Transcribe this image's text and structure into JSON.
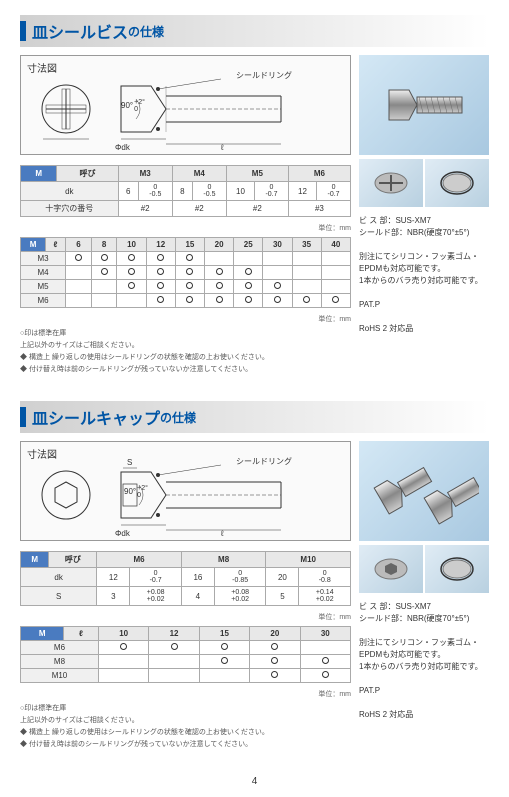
{
  "sec1": {
    "title": "皿シールビス",
    "titleSub": "の仕様",
    "diagram": {
      "label": "寸法図",
      "angle": "90°",
      "angleTol1": "+2°",
      "angleTol2": "0",
      "ring": "シールドリング",
      "dk": "Φdk",
      "len": "ℓ"
    },
    "t1": {
      "hdr": [
        "呼び",
        "M3",
        "M4",
        "M5",
        "M6"
      ],
      "rows": [
        {
          "lbl": "dk",
          "cells": [
            [
              "6",
              "0",
              "-0.5"
            ],
            [
              "8",
              "0",
              "-0.5"
            ],
            [
              "10",
              "0",
              "-0.7"
            ],
            [
              "12",
              "0",
              "-0.7"
            ]
          ]
        },
        {
          "lbl": "十字穴の番号",
          "plain": [
            "#2",
            "#2",
            "#2",
            "#3"
          ]
        }
      ],
      "unit": "単位：mm"
    },
    "t2": {
      "hdr": [
        "ℓ",
        "6",
        "8",
        "10",
        "12",
        "15",
        "20",
        "25",
        "30",
        "35",
        "40"
      ],
      "rows": [
        {
          "lbl": "M3",
          "o": [
            1,
            1,
            1,
            1,
            1,
            0,
            0,
            0,
            0,
            0
          ]
        },
        {
          "lbl": "M4",
          "o": [
            0,
            1,
            1,
            1,
            1,
            1,
            1,
            0,
            0,
            0
          ]
        },
        {
          "lbl": "M5",
          "o": [
            0,
            0,
            1,
            1,
            1,
            1,
            1,
            1,
            0,
            0
          ]
        },
        {
          "lbl": "M6",
          "o": [
            0,
            0,
            0,
            1,
            1,
            1,
            1,
            1,
            1,
            1
          ]
        }
      ],
      "unit": "単位：mm"
    },
    "notes": [
      "○印は標準在庫",
      "上記以外のサイズはご相談ください。",
      "◆ 構造上 繰り返しの使用はシールドリングの状態を確認の上お使いください。",
      "◆ 付け替え時は前のシールドリングが残っていないか注意してください。"
    ],
    "info": [
      "ビ ス 部：SUS-XM7",
      "シールド部：NBR(硬度70°±5°)",
      "",
      "別注にてシリコン・フッ素ゴム・EPDMも対応可能です。",
      "1本からのバラ売り対応可能です。",
      "",
      "PAT.P",
      "",
      "RoHS 2 対応品"
    ]
  },
  "sec2": {
    "title": "皿シールキャップ",
    "titleSub": "の仕様",
    "diagram": {
      "label": "寸法図",
      "angle": "90°",
      "angleTol1": "+2°",
      "angleTol2": "0",
      "ring": "シールドリング",
      "dk": "Φdk",
      "len": "ℓ",
      "s": "S"
    },
    "t1": {
      "hdr": [
        "呼び",
        "M6",
        "M8",
        "M10"
      ],
      "rows": [
        {
          "lbl": "dk",
          "cells": [
            [
              "12",
              "0",
              "-0.7"
            ],
            [
              "16",
              "0",
              "-0.85"
            ],
            [
              "20",
              "0",
              "-0.8"
            ]
          ]
        },
        {
          "lbl": "S",
          "cells": [
            [
              "3",
              "+0.08",
              "+0.02"
            ],
            [
              "4",
              "+0.08",
              "+0.02"
            ],
            [
              "5",
              "+0.14",
              "+0.02"
            ]
          ]
        }
      ],
      "unit": "単位：mm"
    },
    "t2": {
      "hdr": [
        "ℓ",
        "10",
        "12",
        "15",
        "20",
        "30"
      ],
      "rows": [
        {
          "lbl": "M6",
          "o": [
            1,
            1,
            1,
            1,
            0
          ]
        },
        {
          "lbl": "M8",
          "o": [
            0,
            0,
            1,
            1,
            1
          ]
        },
        {
          "lbl": "M10",
          "o": [
            0,
            0,
            0,
            1,
            1
          ]
        }
      ],
      "unit": "単位：mm"
    },
    "notes": [
      "○印は標準在庫",
      "上記以外のサイズはご相談ください。",
      "◆ 構造上 繰り返しの使用はシールドリングの状態を確認の上お使いください。",
      "◆ 付け替え時は前のシールドリングが残っていないか注意してください。"
    ],
    "info": [
      "ビ ス 部：SUS-XM7",
      "シールド部：NBR(硬度70°±5°)",
      "",
      "別注にてシリコン・フッ素ゴム・EPDMも対応可能です。",
      "1本からのバラ売り対応可能です。",
      "",
      "PAT.P",
      "",
      "RoHS 2 対応品"
    ]
  },
  "pageNum": "4"
}
